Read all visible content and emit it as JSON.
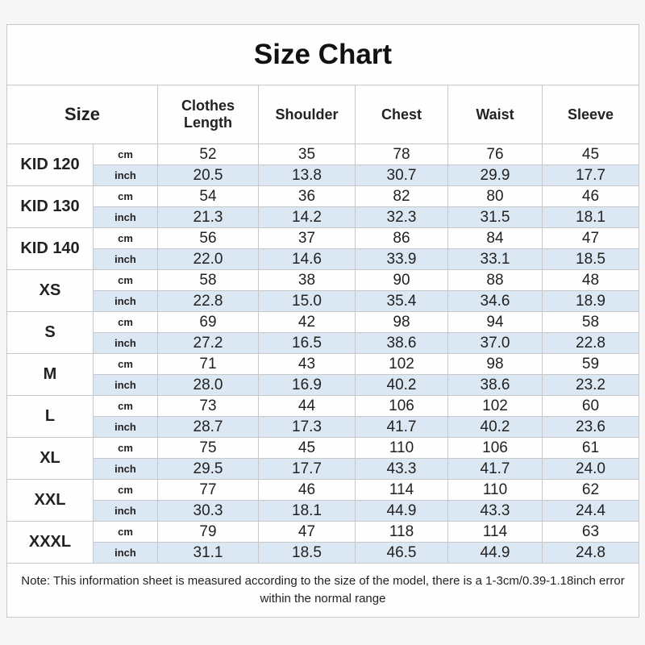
{
  "title": "Size Chart",
  "header": {
    "size": "Size",
    "columns": [
      "Clothes Length",
      "Shoulder",
      "Chest",
      "Waist",
      "Sleeve"
    ]
  },
  "units": [
    "cm",
    "inch"
  ],
  "rows": [
    {
      "size": "KID 120",
      "values": [
        [
          "52",
          "35",
          "78",
          "76",
          "45"
        ],
        [
          "20.5",
          "13.8",
          "30.7",
          "29.9",
          "17.7"
        ]
      ]
    },
    {
      "size": "KID 130",
      "values": [
        [
          "54",
          "36",
          "82",
          "80",
          "46"
        ],
        [
          "21.3",
          "14.2",
          "32.3",
          "31.5",
          "18.1"
        ]
      ]
    },
    {
      "size": "KID 140",
      "values": [
        [
          "56",
          "37",
          "86",
          "84",
          "47"
        ],
        [
          "22.0",
          "14.6",
          "33.9",
          "33.1",
          "18.5"
        ]
      ]
    },
    {
      "size": "XS",
      "values": [
        [
          "58",
          "38",
          "90",
          "88",
          "48"
        ],
        [
          "22.8",
          "15.0",
          "35.4",
          "34.6",
          "18.9"
        ]
      ]
    },
    {
      "size": "S",
      "values": [
        [
          "69",
          "42",
          "98",
          "94",
          "58"
        ],
        [
          "27.2",
          "16.5",
          "38.6",
          "37.0",
          "22.8"
        ]
      ]
    },
    {
      "size": "M",
      "values": [
        [
          "71",
          "43",
          "102",
          "98",
          "59"
        ],
        [
          "28.0",
          "16.9",
          "40.2",
          "38.6",
          "23.2"
        ]
      ]
    },
    {
      "size": "L",
      "values": [
        [
          "73",
          "44",
          "106",
          "102",
          "60"
        ],
        [
          "28.7",
          "17.3",
          "41.7",
          "40.2",
          "23.6"
        ]
      ]
    },
    {
      "size": "XL",
      "values": [
        [
          "75",
          "45",
          "110",
          "106",
          "61"
        ],
        [
          "29.5",
          "17.7",
          "43.3",
          "41.7",
          "24.0"
        ]
      ]
    },
    {
      "size": "XXL",
      "values": [
        [
          "77",
          "46",
          "114",
          "110",
          "62"
        ],
        [
          "30.3",
          "18.1",
          "44.9",
          "43.3",
          "24.4"
        ]
      ]
    },
    {
      "size": "XXXL",
      "values": [
        [
          "79",
          "47",
          "118",
          "114",
          "63"
        ],
        [
          "31.1",
          "18.5",
          "46.5",
          "44.9",
          "24.8"
        ]
      ]
    }
  ],
  "note": "Note: This information sheet is measured according to the size of the model, there is a 1-3cm/0.39-1.18inch error within the normal range"
}
